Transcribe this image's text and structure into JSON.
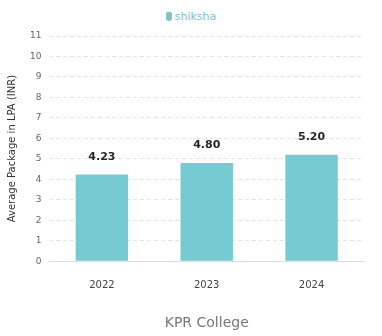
{
  "chart_data": {
    "type": "bar",
    "annotations": [
      "shiksha"
    ],
    "x_label": "KPR College",
    "y_label": "Average Package in LPA (INR)",
    "categories": [
      "2022",
      "2023",
      "2024"
    ],
    "values": [
      4.23,
      4.8,
      5.2
    ],
    "value_labels": [
      "4.23",
      "4.80",
      "5.20"
    ],
    "data_labels": true,
    "color": "#76cbd3",
    "ylim": [
      0,
      11
    ],
    "yticks": [
      0,
      1,
      2,
      3,
      4,
      5,
      6,
      7,
      8,
      9,
      10,
      11
    ],
    "grid": true
  }
}
